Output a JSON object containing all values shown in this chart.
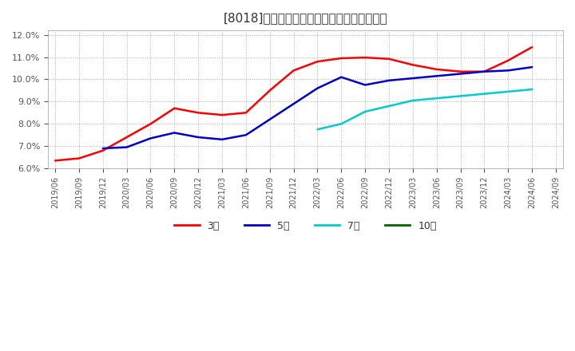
{
  "title": "[8018]　当期純利益マージンの平均値の推移",
  "ylim": [
    0.06,
    0.122
  ],
  "yticks": [
    0.06,
    0.07,
    0.08,
    0.09,
    0.1,
    0.11,
    0.12
  ],
  "background_color": "#ffffff",
  "plot_bg_color": "#ffffff",
  "series": {
    "3年": {
      "color": "#ff0000",
      "dates": [
        "2019/06",
        "2019/09",
        "2019/12",
        "2020/03",
        "2020/06",
        "2020/09",
        "2020/12",
        "2021/03",
        "2021/06",
        "2021/09",
        "2021/12",
        "2022/03",
        "2022/06",
        "2022/09",
        "2022/12",
        "2023/03",
        "2023/06",
        "2023/09",
        "2023/12",
        "2024/03",
        "2024/06"
      ],
      "values": [
        0.0635,
        0.0645,
        0.068,
        0.074,
        0.08,
        0.087,
        0.085,
        0.084,
        0.085,
        0.095,
        0.104,
        0.108,
        0.1095,
        0.1098,
        0.1092,
        0.1065,
        0.1045,
        0.1035,
        0.1035,
        0.1085,
        0.1145
      ]
    },
    "5年": {
      "color": "#0000cc",
      "dates": [
        "2019/12",
        "2020/03",
        "2020/06",
        "2020/09",
        "2020/12",
        "2021/03",
        "2021/06",
        "2021/09",
        "2021/12",
        "2022/03",
        "2022/06",
        "2022/09",
        "2022/12",
        "2023/03",
        "2023/06",
        "2023/09",
        "2023/12",
        "2024/03",
        "2024/06"
      ],
      "values": [
        0.069,
        0.0695,
        0.0735,
        0.076,
        0.074,
        0.073,
        0.075,
        0.082,
        0.089,
        0.096,
        0.101,
        0.0975,
        0.0995,
        0.1005,
        0.1015,
        0.1025,
        0.1035,
        0.104,
        0.1055
      ]
    },
    "7年": {
      "color": "#00cccc",
      "dates": [
        "2022/03",
        "2022/06",
        "2022/09",
        "2022/12",
        "2023/03",
        "2023/06",
        "2023/09",
        "2023/12",
        "2024/03",
        "2024/06"
      ],
      "values": [
        0.0775,
        0.08,
        0.0855,
        0.088,
        0.0905,
        0.0915,
        0.0925,
        0.0935,
        0.0945,
        0.0955
      ]
    },
    "10年": {
      "color": "#006600",
      "dates": [],
      "values": []
    }
  },
  "legend_labels": [
    "3年",
    "5年",
    "7年",
    "10年"
  ],
  "legend_colors": [
    "#ff0000",
    "#0000cc",
    "#00cccc",
    "#006600"
  ],
  "xtick_labels": [
    "2019/06",
    "2019/09",
    "2019/12",
    "2020/03",
    "2020/06",
    "2020/09",
    "2020/12",
    "2021/03",
    "2021/06",
    "2021/09",
    "2021/12",
    "2022/03",
    "2022/06",
    "2022/09",
    "2022/12",
    "2023/03",
    "2023/06",
    "2023/09",
    "2023/12",
    "2024/03",
    "2024/06",
    "2024/09"
  ]
}
